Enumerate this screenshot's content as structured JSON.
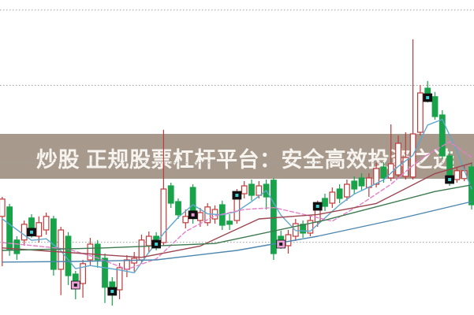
{
  "banner": {
    "text": "炒股 正规股票杠杆平台：安全高效投资之选",
    "background_color": "#a79a8d",
    "text_color": "#f7f4ef"
  },
  "chart_data": {
    "type": "candlestick",
    "title": "",
    "xlabel": "",
    "ylabel": "",
    "x_axis": {
      "visible": false,
      "tick_labels": []
    },
    "y_axis": {
      "visible": false,
      "tick_labels": [],
      "scale": "normalized 0-100 (no axis labels shown in image)",
      "min": 0,
      "max": 100
    },
    "grid": {
      "horizontal_dotted": true,
      "gridline_values": [
        96.8,
        72.9,
        48.3,
        23.1
      ],
      "color": "#9f9f9f"
    },
    "legend": {
      "visible": false
    },
    "colors": {
      "up_candle": "#c03a3a",
      "up_fill": "#ffffff",
      "down_candle": "#18a24a",
      "ma_fast_cyan": "#5fa8cf",
      "ma_slow_pink": "#e57fc8",
      "ma_maroon": "#9c4650",
      "ma_dark_green": "#3c7a4f",
      "ma_steel_blue": "#4d87b0",
      "marker_teal_dot": "#45cfd2",
      "marker_pink_box": "#e9a0d5",
      "marker_black_box": "#101010"
    },
    "candles": [
      [
        31.3,
        36.8,
        37.5,
        15.5,
        "u",
        null
      ],
      [
        34.3,
        20.8,
        35.3,
        18.8,
        "d",
        null
      ],
      [
        23.8,
        19.5,
        25.0,
        17.5,
        "d",
        null
      ],
      [
        23.8,
        28.8,
        30.0,
        22.0,
        "u",
        null
      ],
      [
        30.8,
        26.3,
        32.0,
        24.5,
        "d",
        "teal"
      ],
      [
        25.0,
        29.3,
        31.3,
        23.0,
        "u",
        null
      ],
      [
        27.0,
        31.3,
        32.5,
        25.5,
        "u",
        null
      ],
      [
        30.5,
        14.5,
        31.5,
        12.5,
        "d",
        null
      ],
      [
        14.5,
        27.0,
        28.0,
        6.3,
        "u",
        null
      ],
      [
        25.0,
        12.5,
        26.3,
        9.5,
        "d",
        null
      ],
      [
        13.0,
        9.5,
        14.0,
        5.0,
        "d",
        "pink"
      ],
      [
        10.0,
        16.3,
        17.5,
        5.5,
        "u",
        null
      ],
      [
        17.5,
        22.5,
        24.5,
        15.5,
        "u",
        null
      ],
      [
        22.5,
        17.5,
        23.8,
        15.0,
        "d",
        null
      ],
      [
        18.0,
        8.8,
        19.5,
        3.8,
        "d",
        null
      ],
      [
        10.5,
        7.5,
        12.0,
        3.0,
        "d",
        "teal"
      ],
      [
        8.0,
        15.0,
        16.5,
        5.0,
        "u",
        null
      ],
      [
        14.5,
        17.5,
        19.0,
        12.0,
        "u",
        null
      ],
      [
        16.5,
        18.0,
        20.0,
        13.8,
        "u",
        null
      ],
      [
        17.5,
        23.8,
        25.5,
        16.3,
        "u",
        null
      ],
      [
        22.0,
        25.0,
        26.5,
        20.0,
        "u",
        null
      ],
      [
        25.0,
        22.5,
        26.3,
        20.5,
        "d",
        "teal"
      ],
      [
        23.0,
        40.0,
        58.8,
        22.0,
        "u",
        null
      ],
      [
        41.0,
        35.5,
        42.0,
        34.0,
        "d",
        null
      ],
      [
        36.0,
        31.8,
        37.0,
        30.5,
        "d",
        null
      ],
      [
        29.3,
        31.3,
        33.5,
        27.5,
        "u",
        null
      ],
      [
        40.5,
        31.8,
        41.5,
        29.0,
        "d",
        "pinkdot"
      ],
      [
        30.0,
        32.5,
        34.0,
        28.0,
        "u",
        null
      ],
      [
        29.3,
        34.3,
        35.5,
        28.3,
        "u",
        null
      ],
      [
        30.5,
        33.5,
        34.8,
        29.0,
        "u",
        null
      ],
      [
        35.0,
        28.5,
        36.3,
        27.0,
        "d",
        null
      ],
      [
        29.8,
        28.8,
        32.0,
        27.0,
        "d",
        null
      ],
      [
        30.0,
        38.0,
        40.0,
        29.0,
        "u",
        "teal"
      ],
      [
        38.5,
        41.0,
        42.5,
        37.0,
        "u",
        null
      ],
      [
        41.5,
        38.0,
        43.0,
        36.3,
        "d",
        null
      ],
      [
        38.0,
        41.0,
        42.5,
        37.0,
        "u",
        null
      ],
      [
        41.5,
        37.5,
        43.0,
        33.5,
        "d",
        null
      ],
      [
        42.8,
        19.5,
        43.5,
        17.5,
        "d",
        null
      ],
      [
        25.0,
        22.5,
        26.8,
        21.0,
        "d",
        "pink"
      ],
      [
        22.0,
        25.5,
        27.0,
        19.5,
        "u",
        null
      ],
      [
        25.0,
        29.0,
        30.5,
        23.5,
        "u",
        null
      ],
      [
        28.8,
        26.0,
        30.0,
        24.5,
        "d",
        null
      ],
      [
        26.0,
        30.0,
        31.5,
        25.0,
        "u",
        null
      ],
      [
        29.5,
        34.5,
        36.3,
        28.0,
        "u",
        "teal"
      ],
      [
        37.0,
        34.5,
        38.5,
        33.0,
        "d",
        null
      ],
      [
        35.5,
        39.0,
        40.5,
        34.0,
        "u",
        null
      ],
      [
        40.0,
        37.0,
        41.5,
        35.5,
        "d",
        null
      ],
      [
        37.5,
        41.5,
        43.0,
        36.3,
        "u",
        null
      ],
      [
        42.5,
        40.0,
        44.0,
        38.5,
        "d",
        null
      ],
      [
        43.5,
        41.0,
        45.0,
        39.5,
        "d",
        null
      ],
      [
        40.5,
        43.5,
        45.0,
        37.5,
        "u",
        null
      ],
      [
        41.5,
        46.5,
        48.3,
        40.5,
        "u",
        null
      ],
      [
        47.0,
        43.5,
        48.5,
        42.0,
        "d",
        null
      ],
      [
        43.5,
        48.0,
        60.5,
        42.5,
        "u",
        null
      ],
      [
        44.5,
        54.5,
        57.0,
        43.5,
        "u",
        null
      ],
      [
        44.0,
        50.0,
        58.0,
        43.0,
        "u",
        null
      ],
      [
        43.8,
        57.5,
        87.5,
        43.0,
        "u",
        null
      ],
      [
        58.0,
        70.5,
        73.0,
        57.0,
        "u",
        null
      ],
      [
        72.0,
        69.0,
        74.3,
        67.5,
        "d",
        "teal"
      ],
      [
        69.3,
        63.0,
        70.8,
        62.0,
        "d",
        null
      ],
      [
        63.5,
        50.5,
        65.0,
        49.5,
        "d",
        null
      ],
      [
        50.5,
        43.0,
        52.0,
        41.0,
        "d",
        "black"
      ],
      [
        43.0,
        45.8,
        47.0,
        42.0,
        "u",
        null
      ],
      [
        43.3,
        45.8,
        47.3,
        42.5,
        "u",
        null
      ],
      [
        47.0,
        35.0,
        48.5,
        33.5,
        "d",
        null
      ]
    ],
    "series": [
      {
        "name": "ma-fast-cyan",
        "color": "#5fa8cf",
        "dash": "",
        "points": [
          [
            0,
            30.5
          ],
          [
            4,
            23.7
          ],
          [
            6,
            24.2
          ],
          [
            8,
            20.4
          ],
          [
            10,
            14.7
          ],
          [
            12,
            15.7
          ],
          [
            14,
            15.0
          ],
          [
            16,
            14.3
          ],
          [
            18,
            13.4
          ],
          [
            20,
            19.9
          ],
          [
            22,
            25.9
          ],
          [
            24,
            31.0
          ],
          [
            26,
            35.0
          ],
          [
            28,
            32.1
          ],
          [
            30,
            31.8
          ],
          [
            32,
            32.9
          ],
          [
            34,
            36.0
          ],
          [
            36,
            39.5
          ],
          [
            38,
            31.7
          ],
          [
            40,
            26.8
          ],
          [
            42,
            26.6
          ],
          [
            44,
            30.8
          ],
          [
            46,
            35.0
          ],
          [
            48,
            38.4
          ],
          [
            50,
            40.6
          ],
          [
            52,
            42.9
          ],
          [
            54,
            47.2
          ],
          [
            56,
            50.7
          ],
          [
            58,
            60.3
          ],
          [
            60,
            62.1
          ],
          [
            62,
            52.0
          ],
          [
            64,
            40.0
          ]
        ]
      },
      {
        "name": "ma-slow-pink",
        "color": "#e57fc8",
        "dash": "5 3",
        "points": [
          [
            0,
            23.0
          ],
          [
            9,
            20.9
          ],
          [
            13,
            18.1
          ],
          [
            17,
            14.5
          ],
          [
            21,
            17.8
          ],
          [
            25,
            26.5
          ],
          [
            29,
            31.5
          ],
          [
            33,
            33.5
          ],
          [
            37,
            34.1
          ],
          [
            41,
            32.0
          ],
          [
            45,
            29.8
          ],
          [
            49,
            35.3
          ],
          [
            53,
            41.5
          ],
          [
            57,
            49.5
          ],
          [
            61,
            55.0
          ],
          [
            64,
            50.0
          ]
        ]
      },
      {
        "name": "ma-maroon",
        "color": "#9c4650",
        "dash": "",
        "points": [
          [
            0,
            21.3
          ],
          [
            8,
            20.0
          ],
          [
            19,
            18.3
          ],
          [
            27,
            21.9
          ],
          [
            35,
            30.5
          ],
          [
            43,
            31.9
          ],
          [
            51,
            35.4
          ],
          [
            59,
            44.9
          ],
          [
            64,
            48.2
          ]
        ]
      },
      {
        "name": "ma-dark-green",
        "color": "#3c7a4f",
        "dash": "",
        "points": [
          [
            0,
            20.5
          ],
          [
            14,
            21.3
          ],
          [
            29,
            22.7
          ],
          [
            44,
            30.1
          ],
          [
            59,
            39.2
          ],
          [
            64,
            41.3
          ]
        ]
      },
      {
        "name": "ma-steel-blue",
        "color": "#4d87b0",
        "dash": "",
        "points": [
          [
            0,
            16.8
          ],
          [
            10,
            17.0
          ],
          [
            21,
            17.5
          ],
          [
            32,
            20.5
          ],
          [
            43,
            25.0
          ],
          [
            54,
            30.5
          ],
          [
            64,
            36.0
          ]
        ]
      }
    ]
  }
}
